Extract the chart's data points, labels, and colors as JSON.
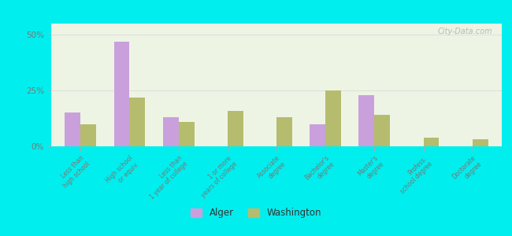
{
  "categories": [
    "Less than\nhigh school",
    "High school\nor equiv.",
    "Less than\n1 year of college",
    "1 or more\nyears of college",
    "Associate\ndegree",
    "Bachelor's\ndegree",
    "Master's\ndegree",
    "Profess.\nschool degree",
    "Doctorate\ndegree"
  ],
  "alger": [
    15,
    47,
    13,
    0,
    0,
    10,
    23,
    0,
    0
  ],
  "washington": [
    10,
    22,
    11,
    16,
    13,
    25,
    14,
    4,
    3
  ],
  "alger_color": "#c9a0dc",
  "washington_color": "#b5bc6e",
  "background_color": "#00eeee",
  "plot_bg_color": "#eef4e4",
  "ylim": [
    0,
    55
  ],
  "yticks": [
    0,
    25,
    50
  ],
  "ytick_labels": [
    "0%",
    "25%",
    "50%"
  ],
  "watermark": "City-Data.com",
  "legend_labels": [
    "Alger",
    "Washington"
  ]
}
